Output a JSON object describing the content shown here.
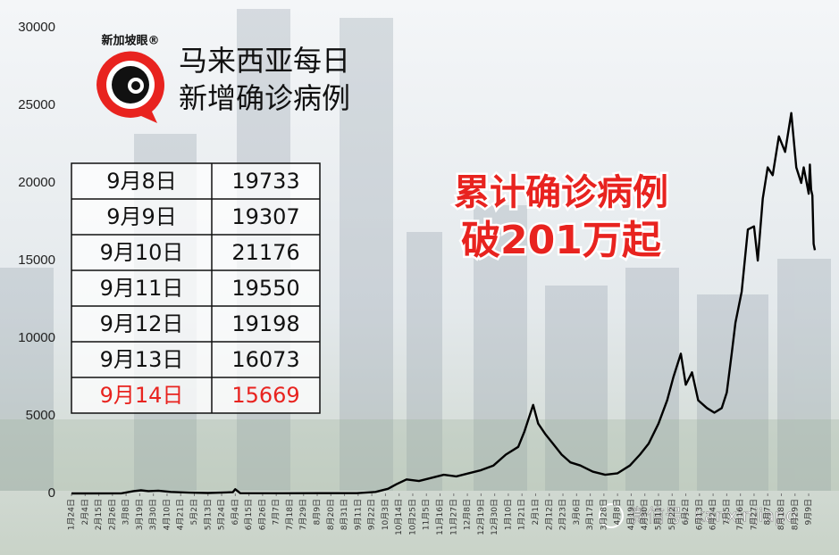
{
  "chart_data": {
    "type": "line",
    "title": [
      "马来西亚每日",
      "新增确诊病例"
    ],
    "logo": "新加坡眼®",
    "annotation": [
      "累计确诊病例",
      "破201万起"
    ],
    "watermark": "微信号: kanxinjiapo",
    "color": "#000000",
    "xlim": [
      0,
      599
    ],
    "ylim": [
      0,
      30000
    ],
    "yticks": [
      0,
      5000,
      10000,
      15000,
      20000,
      25000,
      30000
    ],
    "xticks": [
      {
        "value": 0,
        "label": "1月24日"
      },
      {
        "value": 11,
        "label": "2月4日"
      },
      {
        "value": 22,
        "label": "2月15日"
      },
      {
        "value": 33,
        "label": "2月26日"
      },
      {
        "value": 44,
        "label": "3月8日"
      },
      {
        "value": 55,
        "label": "3月19日"
      },
      {
        "value": 66,
        "label": "3月30日"
      },
      {
        "value": 77,
        "label": "4月10日"
      },
      {
        "value": 88,
        "label": "4月21日"
      },
      {
        "value": 99,
        "label": "5月2日"
      },
      {
        "value": 110,
        "label": "5月13日"
      },
      {
        "value": 121,
        "label": "5月24日"
      },
      {
        "value": 132,
        "label": "6月4日"
      },
      {
        "value": 143,
        "label": "6月15日"
      },
      {
        "value": 154,
        "label": "6月26日"
      },
      {
        "value": 165,
        "label": "7月7日"
      },
      {
        "value": 176,
        "label": "7月18日"
      },
      {
        "value": 187,
        "label": "7月29日"
      },
      {
        "value": 198,
        "label": "8月9日"
      },
      {
        "value": 209,
        "label": "8月20日"
      },
      {
        "value": 220,
        "label": "8月31日"
      },
      {
        "value": 231,
        "label": "9月11日"
      },
      {
        "value": 242,
        "label": "9月22日"
      },
      {
        "value": 253,
        "label": "10月3日"
      },
      {
        "value": 264,
        "label": "10月14日"
      },
      {
        "value": 275,
        "label": "10月25日"
      },
      {
        "value": 286,
        "label": "11月5日"
      },
      {
        "value": 297,
        "label": "11月16日"
      },
      {
        "value": 308,
        "label": "11月27日"
      },
      {
        "value": 319,
        "label": "12月8日"
      },
      {
        "value": 330,
        "label": "12月19日"
      },
      {
        "value": 341,
        "label": "12月30日"
      },
      {
        "value": 352,
        "label": "1月10日"
      },
      {
        "value": 363,
        "label": "1月21日"
      },
      {
        "value": 374,
        "label": "2月1日"
      },
      {
        "value": 385,
        "label": "2月12日"
      },
      {
        "value": 396,
        "label": "2月23日"
      },
      {
        "value": 407,
        "label": "3月6日"
      },
      {
        "value": 418,
        "label": "3月17日"
      },
      {
        "value": 429,
        "label": "3月28日"
      },
      {
        "value": 440,
        "label": "4月8日"
      },
      {
        "value": 451,
        "label": "4月19日"
      },
      {
        "value": 462,
        "label": "4月30日"
      },
      {
        "value": 473,
        "label": "5月11日"
      },
      {
        "value": 484,
        "label": "5月22日"
      },
      {
        "value": 495,
        "label": "6月2日"
      },
      {
        "value": 506,
        "label": "6月13日"
      },
      {
        "value": 517,
        "label": "6月24日"
      },
      {
        "value": 528,
        "label": "7月5日"
      },
      {
        "value": 539,
        "label": "7月16日"
      },
      {
        "value": 550,
        "label": "7月27日"
      },
      {
        "value": 561,
        "label": "8月7日"
      },
      {
        "value": 572,
        "label": "8月18日"
      },
      {
        "value": 583,
        "label": "8月29日"
      },
      {
        "value": 594,
        "label": "9月9日"
      }
    ],
    "x": [
      0,
      40,
      50,
      56,
      62,
      70,
      80,
      95,
      110,
      130,
      132,
      136,
      170,
      200,
      230,
      245,
      255,
      262,
      270,
      280,
      290,
      300,
      310,
      320,
      330,
      340,
      350,
      360,
      365,
      372,
      376,
      382,
      388,
      395,
      402,
      410,
      420,
      430,
      440,
      450,
      458,
      465,
      473,
      480,
      485,
      491,
      495,
      500,
      505,
      512,
      518,
      524,
      528,
      532,
      535,
      540,
      545,
      550,
      553,
      557,
      561,
      565,
      570,
      575,
      580,
      584,
      588,
      590,
      593,
      594,
      595,
      596,
      597,
      598,
      599
    ],
    "values": [
      0,
      5,
      150,
      200,
      150,
      180,
      100,
      50,
      30,
      80,
      270,
      20,
      10,
      15,
      20,
      100,
      300,
      600,
      900,
      800,
      1000,
      1200,
      1100,
      1300,
      1500,
      1800,
      2500,
      3000,
      4000,
      5700,
      4500,
      3800,
      3200,
      2500,
      2000,
      1800,
      1400,
      1200,
      1300,
      1800,
      2500,
      3200,
      4500,
      6000,
      7500,
      9000,
      7000,
      7800,
      6000,
      5500,
      5200,
      5500,
      6500,
      9000,
      11000,
      13000,
      17000,
      17200,
      15000,
      19000,
      21000,
      20500,
      23000,
      22000,
      24500,
      21000,
      20000,
      21000,
      19733,
      19307,
      21176,
      19550,
      19198,
      16073,
      15669
    ],
    "table": {
      "rows": [
        [
          "9月8日",
          "19733"
        ],
        [
          "9月9日",
          "19307"
        ],
        [
          "9月10日",
          "21176"
        ],
        [
          "9月11日",
          "19550"
        ],
        [
          "9月12日",
          "19198"
        ],
        [
          "9月13日",
          "16073"
        ],
        [
          "9月14日",
          "15669"
        ]
      ],
      "highlight_row": 6,
      "highlight_color": "#e8231f"
    }
  }
}
